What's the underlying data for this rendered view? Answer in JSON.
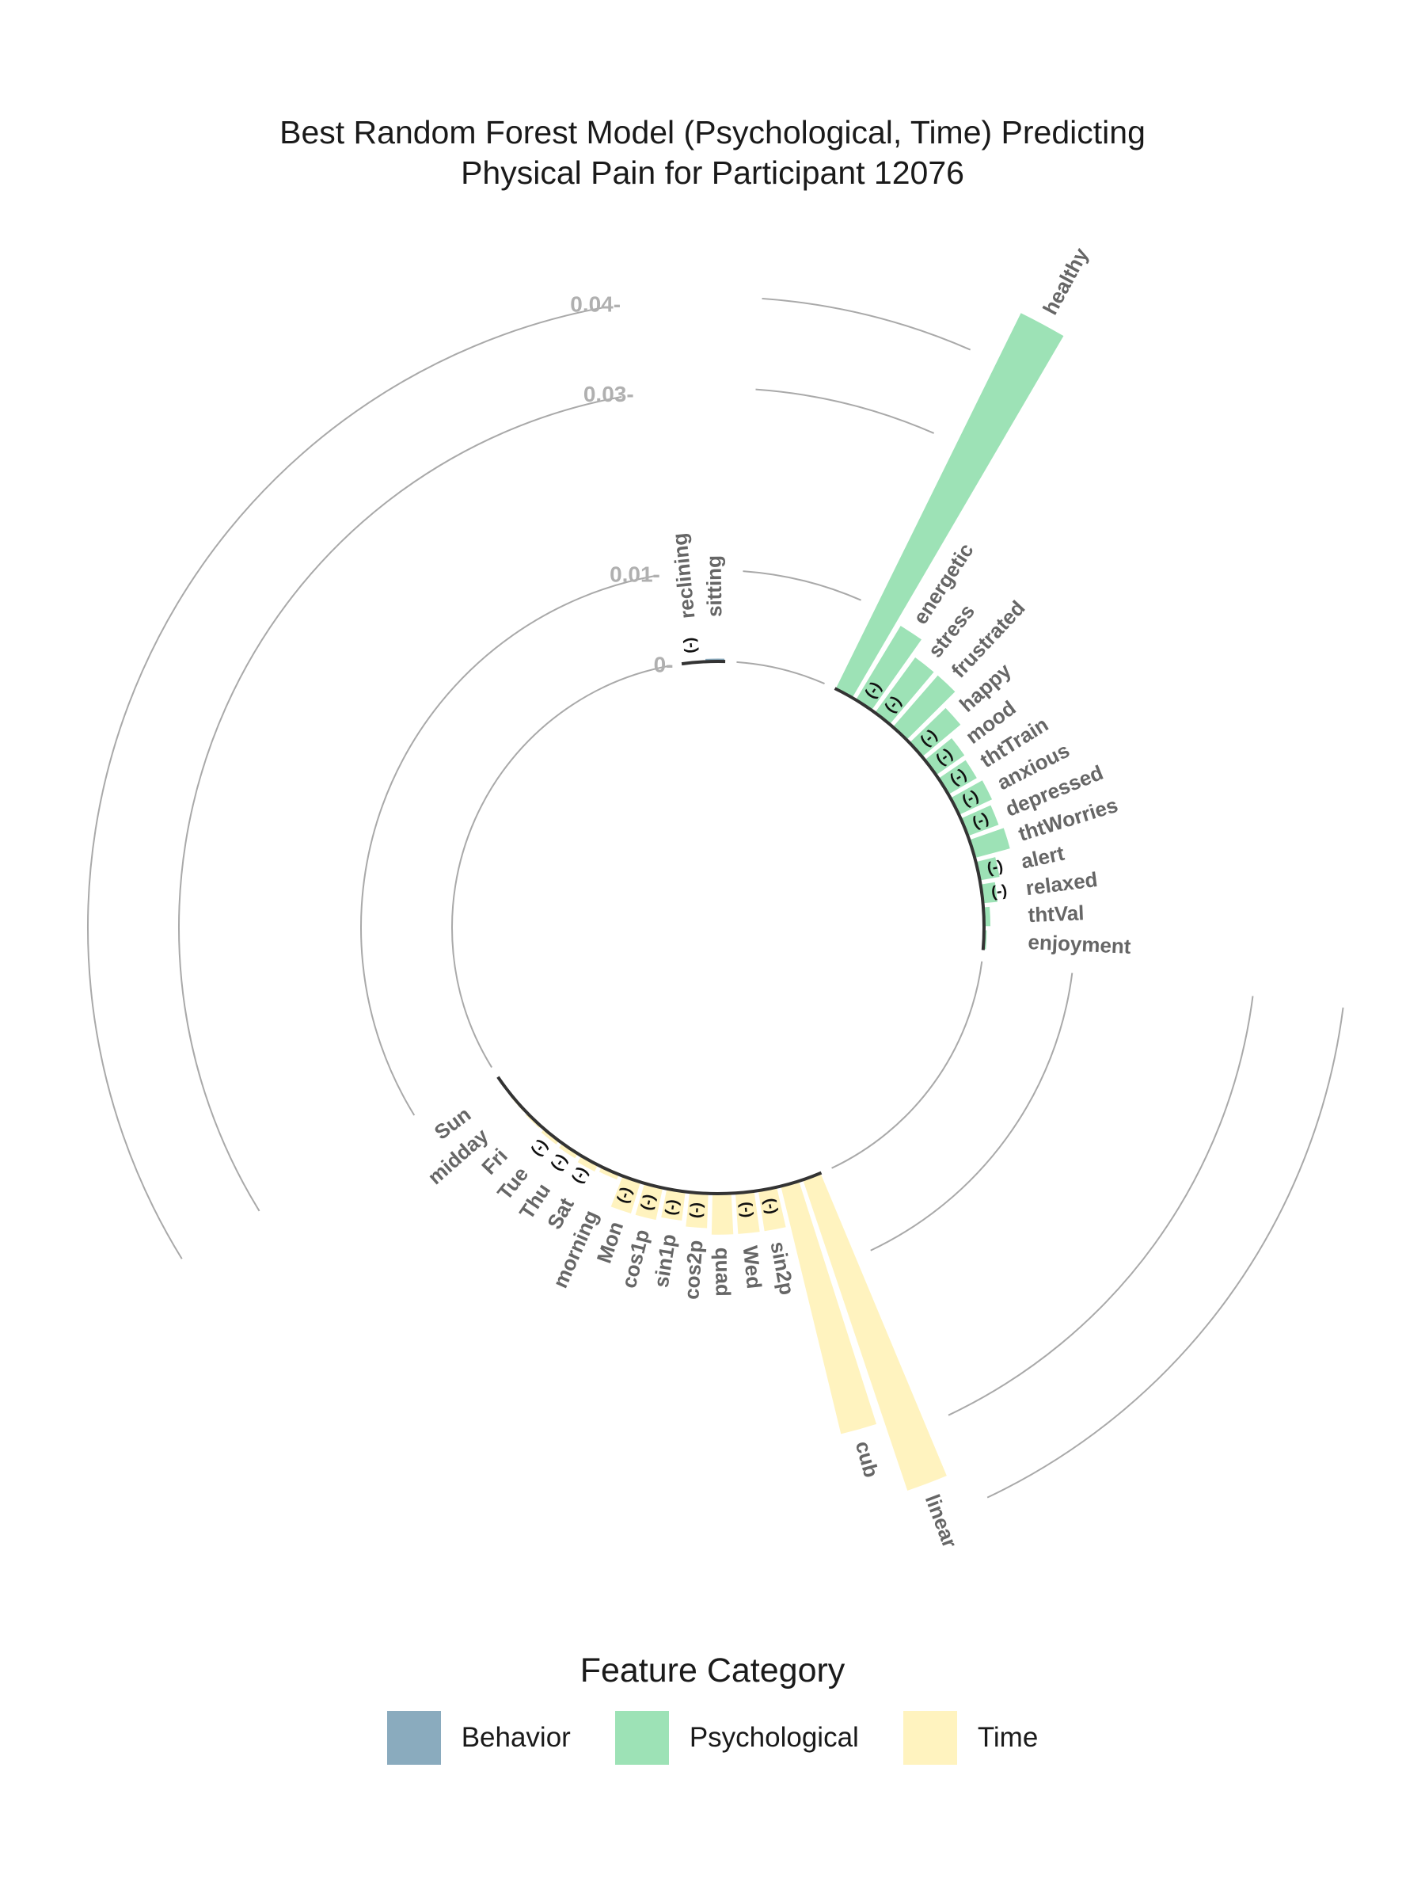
{
  "chart_data": {
    "type": "radial-bar",
    "title": [
      "Best Random Forest Model (Psychological, Time) Predicting",
      "Physical Pain for Participant 12076"
    ],
    "radial_ticks": [
      {
        "value": 0,
        "label": "0-"
      },
      {
        "value": 0.01,
        "label": "0.01-"
      },
      {
        "value": 0.03,
        "label": "0.03-"
      },
      {
        "value": 0.04,
        "label": "0.04-"
      }
    ],
    "negative_marker": "(-)",
    "legend": {
      "title": "Feature Category",
      "placement": "bottom",
      "items": [
        {
          "name": "Behavior",
          "color": "#8AABBE"
        },
        {
          "name": "Psychological",
          "color": "#9DE2B6"
        },
        {
          "name": "Time",
          "color": "#FFF3BF"
        }
      ]
    },
    "groups": [
      {
        "category": "Behavior",
        "features": [
          {
            "name": "reclining",
            "value": 0.0001,
            "negative": true
          },
          {
            "name": "sitting",
            "value": 0.0003,
            "negative": false
          }
        ]
      },
      {
        "category": "Psychological",
        "features": [
          {
            "name": "healthy",
            "value": 0.046,
            "negative": false
          },
          {
            "name": "energetic",
            "value": 0.0095,
            "negative": true
          },
          {
            "name": "stress",
            "value": 0.0075,
            "negative": true
          },
          {
            "name": "frustrated",
            "value": 0.0075,
            "negative": false
          },
          {
            "name": "happy",
            "value": 0.0055,
            "negative": true
          },
          {
            "name": "mood",
            "value": 0.0038,
            "negative": true
          },
          {
            "name": "thtTrain",
            "value": 0.0036,
            "negative": true
          },
          {
            "name": "anxious",
            "value": 0.004,
            "negative": true
          },
          {
            "name": "depressed",
            "value": 0.0036,
            "negative": true
          },
          {
            "name": "thtWorries",
            "value": 0.004,
            "negative": false
          },
          {
            "name": "alert",
            "value": 0.0022,
            "negative": true
          },
          {
            "name": "relaxed",
            "value": 0.0016,
            "negative": true
          },
          {
            "name": "thtVal",
            "value": 0.0007,
            "negative": false
          },
          {
            "name": "enjoyment",
            "value": 0.0003,
            "negative": false
          }
        ]
      },
      {
        "category": "Time",
        "features": [
          {
            "name": "linear",
            "value": 0.036,
            "negative": false
          },
          {
            "name": "cub",
            "value": 0.028,
            "negative": false
          },
          {
            "name": "sin2p",
            "value": 0.0045,
            "negative": true
          },
          {
            "name": "Wed",
            "value": 0.0045,
            "negative": true
          },
          {
            "name": "quad",
            "value": 0.0045,
            "negative": false
          },
          {
            "name": "cos2p",
            "value": 0.0038,
            "negative": true
          },
          {
            "name": "sin1p",
            "value": 0.0032,
            "negative": true
          },
          {
            "name": "cos1p",
            "value": 0.0036,
            "negative": true
          },
          {
            "name": "Mon",
            "value": 0.0036,
            "negative": true
          },
          {
            "name": "morning",
            "value": 0.0006,
            "negative": false
          },
          {
            "name": "Sat",
            "value": 0.0008,
            "negative": true
          },
          {
            "name": "Thu",
            "value": 0.0006,
            "negative": true
          },
          {
            "name": "Tue",
            "value": 0.0005,
            "negative": true
          },
          {
            "name": "Fri",
            "value": 0.0003,
            "negative": false
          },
          {
            "name": "midday",
            "value": 0.0002,
            "negative": false
          },
          {
            "name": "Sun",
            "value": 0.0001,
            "negative": false
          }
        ]
      }
    ]
  }
}
